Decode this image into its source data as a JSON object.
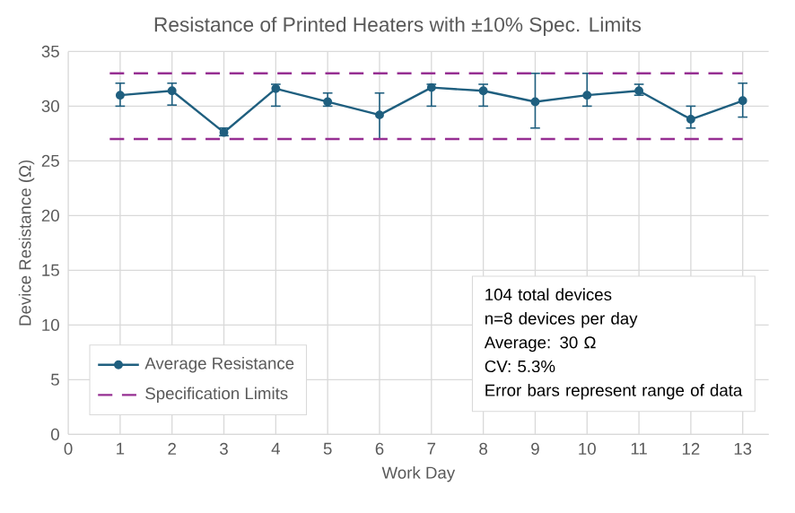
{
  "chart_data": {
    "type": "line",
    "title": "Resistance of Printed Heaters with ±10% Spec. Limits",
    "xlabel": "Work Day",
    "ylabel": "Device Resistance (Ω)",
    "x": [
      1,
      2,
      3,
      4,
      5,
      6,
      7,
      8,
      9,
      10,
      11,
      12,
      13
    ],
    "series": [
      {
        "name": "Average Resistance",
        "color": "#1f5f7f",
        "values": [
          31.0,
          31.4,
          27.6,
          31.6,
          30.4,
          29.2,
          31.7,
          31.4,
          30.4,
          31.0,
          31.4,
          28.8,
          30.5
        ],
        "errors": [
          [
            30.0,
            32.1
          ],
          [
            30.1,
            32.1
          ],
          [
            27.3,
            28.0
          ],
          [
            30.0,
            32.0
          ],
          [
            30.0,
            31.2
          ],
          [
            27.0,
            31.2
          ],
          [
            30.0,
            32.0
          ],
          [
            30.0,
            32.0
          ],
          [
            28.0,
            33.0
          ],
          [
            30.0,
            33.0
          ],
          [
            31.0,
            32.0
          ],
          [
            28.0,
            30.0
          ],
          [
            29.0,
            32.1
          ]
        ]
      }
    ],
    "ref_lines": [
      {
        "axis": "y",
        "value": 33,
        "label": "Specification Limits",
        "color": "#962f92",
        "line_style": "dashed"
      },
      {
        "axis": "y",
        "value": 27,
        "color": "#962f92",
        "line_style": "dashed"
      }
    ],
    "annotations": [
      "104 total devices",
      "n=8 devices per day",
      "Average: 30 Ω",
      "CV: 5.3%",
      "Error bars represent range of data"
    ],
    "xlim": [
      0,
      13.5
    ],
    "ylim": [
      0,
      35
    ],
    "xticks": [
      0,
      1,
      2,
      3,
      4,
      5,
      6,
      7,
      8,
      9,
      10,
      11,
      12,
      13
    ],
    "yticks": [
      0,
      5,
      10,
      15,
      20,
      25,
      30,
      35
    ],
    "grid": true,
    "legend": "bottom left",
    "marker": "circle",
    "line_style": "solid"
  }
}
